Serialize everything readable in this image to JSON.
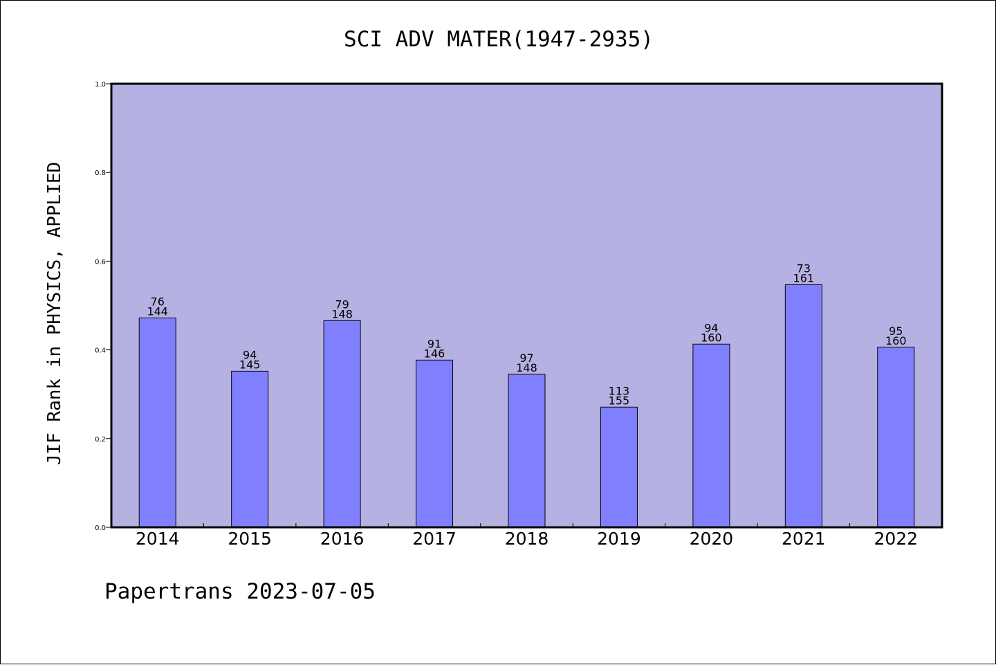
{
  "chart_data": {
    "type": "bar",
    "title": "SCI ADV MATER(1947-2935)",
    "xlabel": "",
    "ylabel": "JIF Rank in PHYSICS, APPLIED",
    "ylim": [
      0,
      1.0
    ],
    "yticks": [
      "0.0",
      "0.2",
      "0.4",
      "0.6",
      "0.8",
      "1.0"
    ],
    "categories": [
      "2014",
      "2015",
      "2016",
      "2017",
      "2018",
      "2019",
      "2020",
      "2021",
      "2022"
    ],
    "values": [
      0.472,
      0.352,
      0.466,
      0.377,
      0.345,
      0.271,
      0.413,
      0.547,
      0.406
    ],
    "rank": [
      "76",
      "94",
      "79",
      "91",
      "97",
      "113",
      "94",
      "73",
      "95"
    ],
    "total": [
      "144",
      "145",
      "148",
      "146",
      "148",
      "155",
      "160",
      "161",
      "160"
    ],
    "colors": {
      "plot_background": "#b6b1e3",
      "bar_fill": "#8080ff",
      "axis": "#000000"
    },
    "grid": false,
    "legend": "none"
  },
  "footer": {
    "text": "Papertrans 2023-07-05"
  }
}
